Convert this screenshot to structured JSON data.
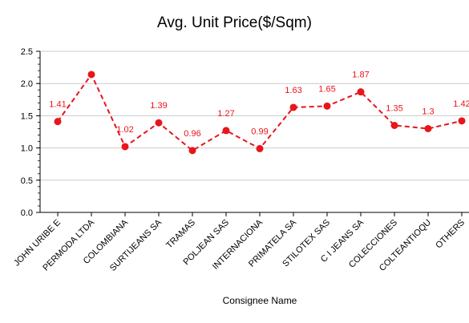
{
  "chart_data": {
    "type": "line",
    "title": "Avg. Unit Price($/Sqm)",
    "xlabel": "Consignee Name",
    "ylabel": "",
    "ylim": [
      0,
      2.5
    ],
    "yticks": [
      "0.0",
      "0.5",
      "1.0",
      "1.5",
      "2.0",
      "2.5"
    ],
    "grid": true,
    "legend": "none",
    "categories": [
      "JOHN URIBE E",
      "PERMODA LTDA",
      "COLOMBIANA",
      "SURTIJEANS SA",
      "TRAMAS",
      "POLJEAN SAS",
      "INTERNACIONA",
      "PRIMATELA SA",
      "STILOTEX SAS",
      "C I JEANS SA",
      "COLECCIONES",
      "COLTEANTIOQU",
      "OTHERS"
    ],
    "series": [
      {
        "values": [
          1.41,
          2.14,
          1.02,
          1.39,
          0.96,
          1.27,
          0.99,
          1.63,
          1.65,
          1.87,
          1.35,
          1.3,
          1.42
        ],
        "labels": [
          "1.41",
          "",
          "1.02",
          "1.39",
          "0.96",
          "1.27",
          "0.99",
          "1.63",
          "1.65",
          "1.87",
          "1.35",
          "1.3",
          "1.42"
        ],
        "color": "#e8151b"
      }
    ]
  }
}
